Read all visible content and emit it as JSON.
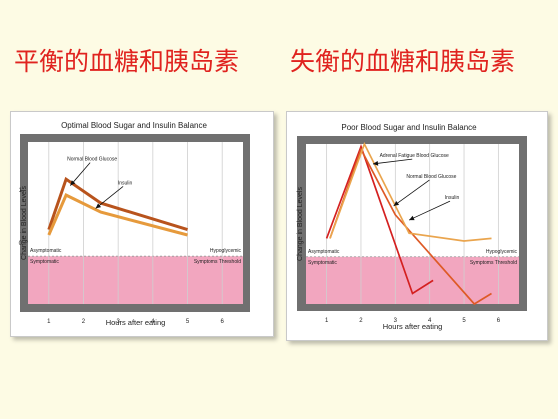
{
  "headings": {
    "left": "平衡的血糖和胰岛素",
    "right": "失衡的血糖和胰岛素"
  },
  "colors": {
    "background": "#fdfbe4",
    "heading": "#e0231f",
    "frame": "#707070",
    "symptom_zone": "#f2a6bf",
    "glucose_left": "#b8531c",
    "insulin_left": "#e69a3c",
    "adrenal_fatigue": "#d42020",
    "glucose_right": "#de5a26",
    "insulin_right": "#eaa54e"
  },
  "chart_data": [
    {
      "type": "line",
      "title": "Optimal Blood Sugar and Insulin Balance",
      "xlabel": "Hours after eating",
      "ylabel": "Change in Blood Levels",
      "xticks": [
        "1",
        "2",
        "3",
        "4",
        "5",
        "6"
      ],
      "yticks": [
        "0",
        "1"
      ],
      "xlim": [
        0.4,
        6.6
      ],
      "ylim": [
        -1.15,
        1.9
      ],
      "grid": true,
      "zones": {
        "threshold": -0.25,
        "upper_left": "Asymptomatic",
        "upper_right": "Hypoglycemic",
        "lower_left": "Symptomatic",
        "lower_right": "Symptoms Threshold"
      },
      "series": [
        {
          "name": "Normal Blood Glucose",
          "color_key": "glucose_left",
          "x": [
            1.0,
            1.5,
            2.5,
            5.0
          ],
          "y": [
            0.25,
            1.2,
            0.75,
            0.25
          ]
        },
        {
          "name": "Insulin",
          "color_key": "insulin_left",
          "x": [
            1.0,
            1.5,
            2.5,
            5.0
          ],
          "y": [
            0.15,
            0.9,
            0.58,
            0.15
          ]
        }
      ],
      "annotations": [
        {
          "text": "Normal Blood Glucose",
          "x": 2.25,
          "y": 1.55,
          "target_x": 1.62,
          "target_y": 1.08
        },
        {
          "text": "Insulin",
          "x": 3.2,
          "y": 1.1,
          "target_x": 2.35,
          "target_y": 0.65
        }
      ]
    },
    {
      "type": "line",
      "title": "Poor Blood Sugar and Insulin Balance",
      "xlabel": "Hours after eating",
      "ylabel": "Change in Blood Levels",
      "xticks": [
        "1",
        "2",
        "3",
        "4",
        "5",
        "6"
      ],
      "yticks": [],
      "xlim": [
        0.4,
        6.6
      ],
      "ylim": [
        -1.15,
        1.9
      ],
      "grid": true,
      "zones": {
        "threshold": -0.25,
        "upper_left": "Asymptomatic",
        "upper_right": "Hypoglycemic",
        "lower_left": "Symptomatic",
        "lower_right": "Symptoms Threshold"
      },
      "series": [
        {
          "name": "Adrenal Fatigue Blood Glucose",
          "color_key": "adrenal_fatigue",
          "x": [
            1.0,
            2.0,
            3.5,
            4.1
          ],
          "y": [
            0.1,
            1.85,
            -0.95,
            -0.7
          ]
        },
        {
          "name": "Normal Blood Glucose",
          "color_key": "glucose_right",
          "x": [
            1.1,
            2.0,
            3.0,
            5.3,
            5.8
          ],
          "y": [
            0.1,
            1.8,
            0.55,
            -1.15,
            -0.95
          ]
        },
        {
          "name": "Insulin",
          "color_key": "insulin_right",
          "x": [
            1.1,
            2.1,
            3.4,
            5.0,
            5.8
          ],
          "y": [
            0.1,
            1.9,
            0.2,
            0.05,
            0.1
          ]
        }
      ],
      "annotations": [
        {
          "text": "Adrenal Fatigue Blood Glucose",
          "x": 3.55,
          "y": 1.65,
          "target_x": 2.35,
          "target_y": 1.52
        },
        {
          "text": "Normal Blood Glucose",
          "x": 4.05,
          "y": 1.25,
          "target_x": 2.95,
          "target_y": 0.72
        },
        {
          "text": "Insulin",
          "x": 4.65,
          "y": 0.85,
          "target_x": 3.4,
          "target_y": 0.45
        }
      ]
    }
  ]
}
